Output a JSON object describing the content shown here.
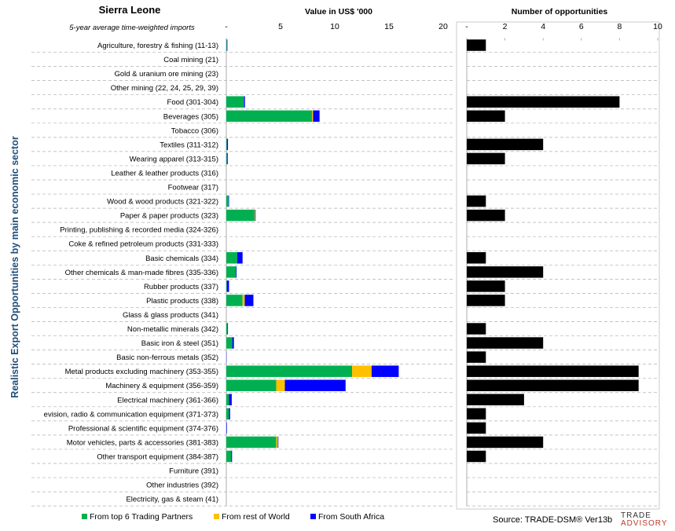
{
  "header": {
    "country": "Sierra Leone",
    "subtitle": "5-year average time-weighted imports"
  },
  "y_axis_label": "Realistic Export Opportunities by main economic sector",
  "legend": [
    {
      "label": "From top 6 Trading Partners",
      "color": "#00b050"
    },
    {
      "label": "From rest of World",
      "color": "#ffc000"
    },
    {
      "label": "From South Africa",
      "color": "#0000ff"
    }
  ],
  "source_text": "Source: TRADE-DSM® Ver13b",
  "logo": {
    "line1": "TRADE",
    "line2": "ADVISORY"
  },
  "chart_data": [
    {
      "type": "bar",
      "orientation": "horizontal",
      "stacked": true,
      "title": "Value in US$ '000",
      "xlim": [
        0,
        20
      ],
      "xticks": [
        "-",
        "5",
        "10",
        "15",
        "20"
      ],
      "categories": [
        "Agriculture, forestry & fishing (11-13)",
        "Coal mining (21)",
        "Gold & uranium ore mining (23)",
        "Other mining (22, 24, 25, 29, 39)",
        "Food (301-304)",
        "Beverages (305)",
        "Tobacco (306)",
        "Textiles (311-312)",
        "Wearing apparel (313-315)",
        "Leather & leather products (316)",
        "Footwear (317)",
        "Wood & wood products (321-322)",
        "Paper & paper products (323)",
        "Printing, publishing & recorded media (324-326)",
        "Coke & refined petroleum products (331-333)",
        "Basic chemicals (334)",
        "Other chemicals & man-made fibres (335-336)",
        "Rubber products (337)",
        "Plastic products (338)",
        "Glass & glass products (341)",
        "Non-metallic minerals (342)",
        "Basic iron & steel (351)",
        "Basic non-ferrous metals (352)",
        "Metal products excluding machinery (353-355)",
        "Machinery & equipment (356-359)",
        "Electrical machinery (361-366)",
        "evision, radio & communication equipment (371-373)",
        "Professional & scientific equipment (374-376)",
        "Motor vehicles, parts & accessories (381-383)",
        "Other transport equipment (384-387)",
        "Furniture (391)",
        "Other industries (392)",
        "Electricity, gas & steam (41)"
      ],
      "series": [
        {
          "name": "From top 6 Trading Partners",
          "color": "#00b050",
          "values": [
            0.05,
            0,
            0,
            0,
            1.6,
            7.9,
            0,
            0.05,
            0.05,
            0,
            0,
            0.2,
            2.6,
            0,
            0,
            1.0,
            0.9,
            0.05,
            1.5,
            0,
            0.1,
            0.55,
            0,
            11.6,
            4.6,
            0.25,
            0.25,
            0,
            4.6,
            0.45,
            0,
            0,
            0
          ]
        },
        {
          "name": "From rest of World",
          "color": "#ffc000",
          "values": [
            0,
            0,
            0,
            0,
            0.02,
            0.1,
            0,
            0,
            0,
            0,
            0,
            0,
            0.05,
            0,
            0,
            0,
            0,
            0,
            0.2,
            0,
            0,
            0,
            0,
            1.8,
            0.8,
            0,
            0,
            0,
            0.15,
            0,
            0,
            0,
            0
          ]
        },
        {
          "name": "From South Africa",
          "color": "#0000ff",
          "values": [
            0.05,
            0,
            0,
            0,
            0.1,
            0.6,
            0,
            0.1,
            0.08,
            0,
            0,
            0.05,
            0.05,
            0,
            0,
            0.5,
            0.05,
            0.2,
            0.8,
            0,
            0.05,
            0.15,
            0.02,
            2.5,
            5.6,
            0.25,
            0.1,
            0.05,
            0.05,
            0.08,
            0,
            0,
            0
          ]
        }
      ]
    },
    {
      "type": "bar",
      "orientation": "horizontal",
      "title": "Number of opportunities",
      "xlim": [
        0,
        10
      ],
      "xticks": [
        "-",
        "2",
        "4",
        "6",
        "8",
        "10"
      ],
      "series": [
        {
          "name": "",
          "color": "#000000",
          "values": [
            1,
            0,
            0,
            0,
            8,
            2,
            0,
            4,
            2,
            0,
            0,
            1,
            2,
            0,
            0,
            1,
            4,
            2,
            2,
            0,
            1,
            4,
            1,
            9,
            9,
            3,
            1,
            1,
            4,
            1,
            0,
            0,
            0
          ]
        }
      ]
    }
  ]
}
